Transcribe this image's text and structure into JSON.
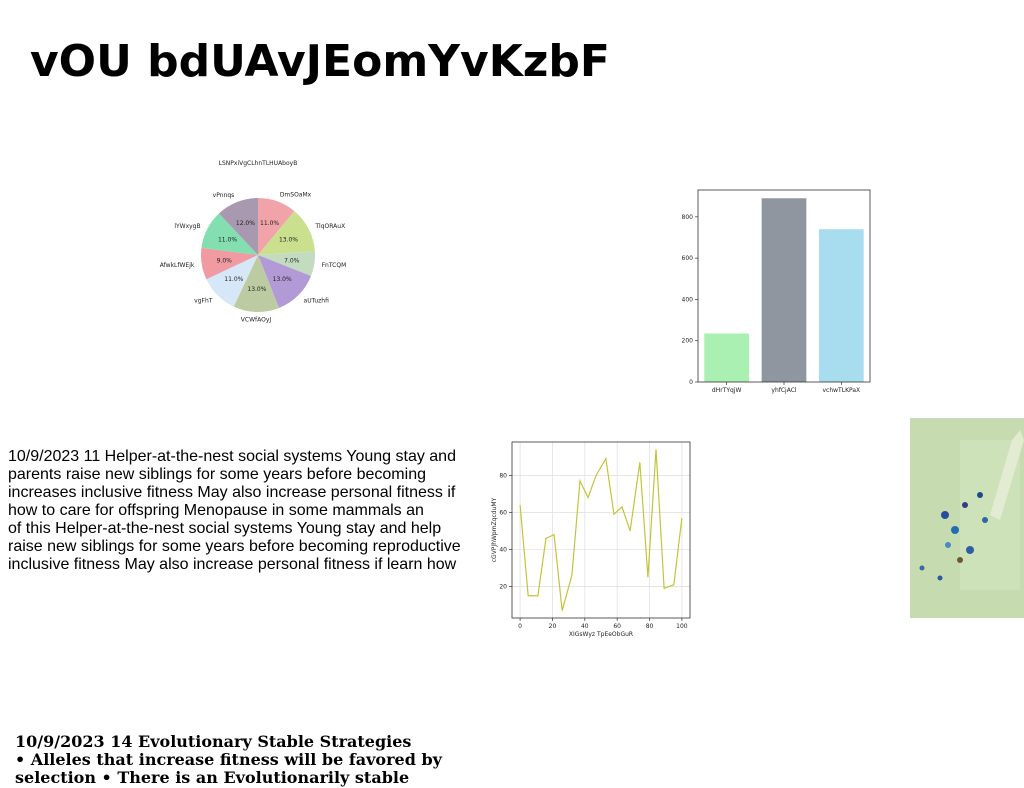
{
  "title": "vOU bdUAvJEomYvKzbF",
  "chart_data": [
    {
      "type": "pie",
      "title": "LSNPxiVgCLhnTLHUAboyB",
      "categories": [
        "DmSOaMx",
        "TlqORAuX",
        "FnTCQM",
        "aUTuzhfi",
        "VCWfAOyJ",
        "vgFhT",
        "AfwkLfWEjk",
        "lYWxygB",
        "vPnnqs"
      ],
      "values": [
        11,
        13,
        7,
        13,
        13,
        11,
        9,
        11,
        12
      ],
      "value_labels": [
        "11.0%",
        "13.0%",
        "7.0%",
        "13.0%",
        "13.0%",
        "11.0%",
        "9.0%",
        "11.0%",
        "12.0%"
      ],
      "colors": [
        "#f0a3a9",
        "#cbe08e",
        "#c3dcc0",
        "#b19ad6",
        "#bccba2",
        "#d6e7f8",
        "#ef9ba1",
        "#84dfb0",
        "#a898b0"
      ]
    },
    {
      "type": "bar",
      "categories": [
        "dHrTYqjW",
        "yhfCjACl",
        "vchwTLKPaX"
      ],
      "values": [
        235,
        890,
        740
      ],
      "colors": [
        "#aaf0b2",
        "#90969f",
        "#a8dcef"
      ],
      "ylim": [
        0,
        930
      ],
      "yticks": [
        0,
        200,
        400,
        600,
        800
      ]
    },
    {
      "type": "line",
      "xlabel": "XIGsWyz TpEeObGuR",
      "ylabel": "cGVPJhWpmZqcduMY",
      "x": [
        0,
        5,
        11,
        16,
        21,
        26,
        32,
        37,
        42,
        47,
        53,
        58,
        63,
        68,
        74,
        79,
        84,
        89,
        95,
        100
      ],
      "values": [
        64,
        15,
        15,
        46,
        48,
        7,
        26,
        77,
        68,
        80,
        89,
        59,
        63,
        50,
        87,
        25,
        94,
        19,
        21,
        57
      ],
      "color": "#c4c43c",
      "grid": true,
      "xlim": [
        -5,
        105
      ],
      "xticks": [
        0,
        20,
        40,
        60,
        80,
        100
      ],
      "ylim": [
        3,
        98
      ],
      "yticks": [
        20,
        40,
        60,
        80
      ]
    }
  ],
  "paragraph": [
    "10/9/2023 11 Helper-at-the-nest social systems Young stay and",
    "parents raise new siblings for some years before becoming",
    "increases inclusive fitness May also increase personal fitness if",
    "how to care for offspring Menopause in some mammals an",
    "of this Helper-at-the-nest social systems Young stay and help",
    "raise new siblings for some years before becoming reproductive",
    "inclusive fitness May also increase personal fitness if learn how"
  ],
  "footer": [
    "10/9/2023 14 Evolutionary Stable Strategies",
    "• Alleles that increase fitness will be favored by",
    "selection • There is an Evolutionarily stable"
  ]
}
